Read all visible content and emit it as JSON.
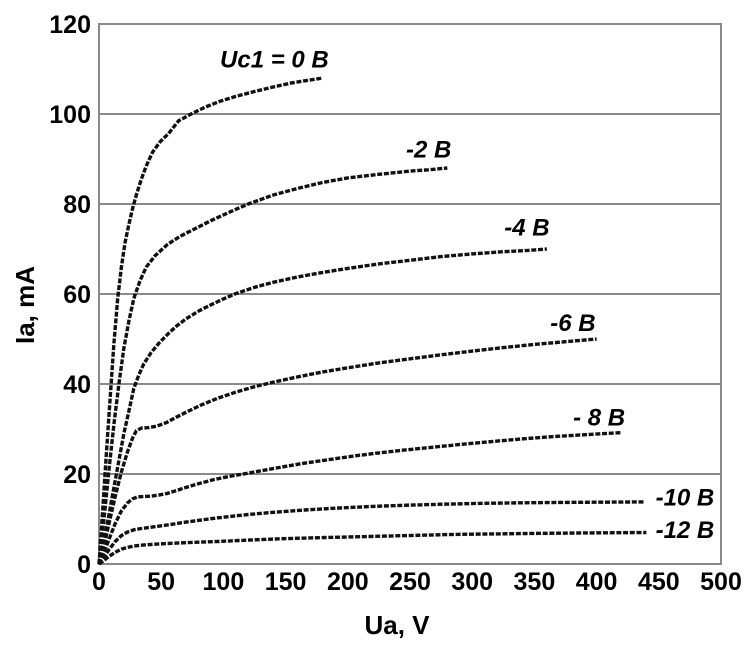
{
  "chart_data": {
    "type": "line",
    "title": "",
    "xlabel": "Ua, V",
    "ylabel": "Ia, mA",
    "xlim": [
      0,
      500
    ],
    "ylim": [
      0,
      120
    ],
    "x_ticks": [
      0,
      50,
      100,
      150,
      200,
      250,
      300,
      350,
      400,
      450,
      500
    ],
    "y_ticks": [
      0,
      20,
      40,
      60,
      80,
      100,
      120
    ],
    "grid": "horizontal-only",
    "legend_position": "inline-labels",
    "colors": {
      "curve": "#111111",
      "grid": "#8a8a8a",
      "border": "#8a8a8a",
      "text": "#000000",
      "background": "#ffffff"
    },
    "series": [
      {
        "name": "Uc1 = 0 B",
        "label": {
          "text": "Uc1 = 0 B",
          "x": 141,
          "y": 112.2
        },
        "points": [
          [
            0,
            0
          ],
          [
            3,
            12
          ],
          [
            6,
            25
          ],
          [
            9,
            37
          ],
          [
            12,
            49
          ],
          [
            15,
            59
          ],
          [
            18,
            66
          ],
          [
            21,
            71.5
          ],
          [
            24,
            75.5
          ],
          [
            27,
            79
          ],
          [
            30,
            82
          ],
          [
            34,
            85.5
          ],
          [
            38,
            88.5
          ],
          [
            43,
            91.5
          ],
          [
            49,
            93.8
          ],
          [
            56,
            95.7
          ],
          [
            64,
            98.5
          ],
          [
            74,
            100
          ],
          [
            85,
            101.5
          ],
          [
            97,
            102.8
          ],
          [
            110,
            103.9
          ],
          [
            125,
            105
          ],
          [
            140,
            106
          ],
          [
            155,
            106.9
          ],
          [
            168,
            107.5
          ],
          [
            180,
            108
          ]
        ]
      },
      {
        "name": "-2 B",
        "label": {
          "text": "-2 B",
          "x": 265,
          "y": 92.2
        },
        "points": [
          [
            0,
            0
          ],
          [
            4,
            10
          ],
          [
            8,
            21
          ],
          [
            12,
            31
          ],
          [
            16,
            40
          ],
          [
            20,
            48
          ],
          [
            24,
            54
          ],
          [
            28,
            59
          ],
          [
            33,
            63
          ],
          [
            38,
            66
          ],
          [
            45,
            68.5
          ],
          [
            55,
            71
          ],
          [
            65,
            72.8
          ],
          [
            75,
            74.2
          ],
          [
            90,
            76.3
          ],
          [
            105,
            78.2
          ],
          [
            120,
            80
          ],
          [
            140,
            82
          ],
          [
            160,
            83.5
          ],
          [
            180,
            84.8
          ],
          [
            200,
            85.8
          ],
          [
            225,
            86.6
          ],
          [
            250,
            87.3
          ],
          [
            265,
            87.6
          ],
          [
            280,
            88
          ]
        ]
      },
      {
        "name": "-4 B",
        "label": {
          "text": "-4 B",
          "x": 344,
          "y": 74.9
        },
        "points": [
          [
            0,
            0
          ],
          [
            4,
            5
          ],
          [
            8,
            11
          ],
          [
            12,
            17
          ],
          [
            16,
            23
          ],
          [
            20,
            29
          ],
          [
            24,
            34
          ],
          [
            28,
            39
          ],
          [
            32,
            42
          ],
          [
            36,
            44.5
          ],
          [
            42,
            47
          ],
          [
            48,
            49
          ],
          [
            55,
            51
          ],
          [
            62,
            52.8
          ],
          [
            70,
            54.5
          ],
          [
            80,
            56.2
          ],
          [
            90,
            57.6
          ],
          [
            100,
            58.9
          ],
          [
            110,
            60.1
          ],
          [
            125,
            61.5
          ],
          [
            140,
            62.6
          ],
          [
            160,
            63.8
          ],
          [
            180,
            64.8
          ],
          [
            200,
            65.7
          ],
          [
            225,
            66.7
          ],
          [
            250,
            67.5
          ],
          [
            275,
            68.3
          ],
          [
            300,
            68.9
          ],
          [
            325,
            69.4
          ],
          [
            345,
            69.7
          ],
          [
            360,
            70
          ]
        ]
      },
      {
        "name": "-6 B",
        "label": {
          "text": "-6 B",
          "x": 381,
          "y": 53.6
        },
        "points": [
          [
            0,
            0
          ],
          [
            4,
            4
          ],
          [
            8,
            9
          ],
          [
            13,
            15
          ],
          [
            18,
            20.5
          ],
          [
            23,
            25
          ],
          [
            27,
            28
          ],
          [
            30,
            29.6
          ],
          [
            34,
            30.2
          ],
          [
            40,
            30.3
          ],
          [
            46,
            30.6
          ],
          [
            54,
            31.4
          ],
          [
            62,
            32.6
          ],
          [
            72,
            34
          ],
          [
            82,
            35.3
          ],
          [
            95,
            36.8
          ],
          [
            110,
            38.2
          ],
          [
            125,
            39.4
          ],
          [
            140,
            40.4
          ],
          [
            160,
            41.6
          ],
          [
            180,
            42.7
          ],
          [
            200,
            43.6
          ],
          [
            225,
            44.7
          ],
          [
            250,
            45.6
          ],
          [
            275,
            46.5
          ],
          [
            300,
            47.3
          ],
          [
            325,
            48.1
          ],
          [
            350,
            48.8
          ],
          [
            375,
            49.4
          ],
          [
            400,
            50
          ]
        ]
      },
      {
        "name": "- 8 B",
        "label": {
          "text": "- 8 B",
          "x": 402,
          "y": 32.7
        },
        "points": [
          [
            0,
            0
          ],
          [
            4,
            2.5
          ],
          [
            8,
            5.5
          ],
          [
            13,
            9
          ],
          [
            18,
            11.8
          ],
          [
            23,
            13.6
          ],
          [
            27,
            14.5
          ],
          [
            31,
            14.9
          ],
          [
            36,
            15
          ],
          [
            42,
            15.1
          ],
          [
            48,
            15.3
          ],
          [
            55,
            15.7
          ],
          [
            63,
            16.4
          ],
          [
            72,
            17.2
          ],
          [
            82,
            18
          ],
          [
            93,
            18.8
          ],
          [
            105,
            19.5
          ],
          [
            118,
            20.1
          ],
          [
            132,
            20.8
          ],
          [
            148,
            21.6
          ],
          [
            165,
            22.4
          ],
          [
            185,
            23.2
          ],
          [
            205,
            24
          ],
          [
            225,
            24.7
          ],
          [
            245,
            25.3
          ],
          [
            270,
            26
          ],
          [
            295,
            26.7
          ],
          [
            320,
            27.3
          ],
          [
            345,
            27.9
          ],
          [
            370,
            28.4
          ],
          [
            395,
            28.8
          ],
          [
            420,
            29.2
          ]
        ]
      },
      {
        "name": "-10 B",
        "label": {
          "text": "-10 B",
          "x": 471,
          "y": 14.9
        },
        "points": [
          [
            0,
            0
          ],
          [
            4,
            1.5
          ],
          [
            8,
            3.2
          ],
          [
            13,
            5
          ],
          [
            18,
            6.3
          ],
          [
            23,
            7.1
          ],
          [
            28,
            7.6
          ],
          [
            34,
            7.9
          ],
          [
            40,
            8.1
          ],
          [
            48,
            8.4
          ],
          [
            58,
            8.8
          ],
          [
            70,
            9.3
          ],
          [
            85,
            9.9
          ],
          [
            100,
            10.4
          ],
          [
            120,
            11
          ],
          [
            140,
            11.5
          ],
          [
            165,
            12
          ],
          [
            190,
            12.4
          ],
          [
            220,
            12.8
          ],
          [
            250,
            13.1
          ],
          [
            280,
            13.3
          ],
          [
            310,
            13.5
          ],
          [
            340,
            13.6
          ],
          [
            375,
            13.7
          ],
          [
            438,
            13.8
          ]
        ]
      },
      {
        "name": "-12 B",
        "label": {
          "text": "-12 B",
          "x": 471,
          "y": 7.6
        },
        "points": [
          [
            0,
            0
          ],
          [
            4,
            0.8
          ],
          [
            8,
            1.7
          ],
          [
            13,
            2.6
          ],
          [
            18,
            3.3
          ],
          [
            23,
            3.7
          ],
          [
            28,
            4
          ],
          [
            35,
            4.2
          ],
          [
            45,
            4.4
          ],
          [
            58,
            4.6
          ],
          [
            75,
            4.8
          ],
          [
            95,
            5
          ],
          [
            120,
            5.3
          ],
          [
            145,
            5.6
          ],
          [
            170,
            5.8
          ],
          [
            200,
            6
          ],
          [
            230,
            6.2
          ],
          [
            260,
            6.4
          ],
          [
            290,
            6.6
          ],
          [
            320,
            6.7
          ],
          [
            350,
            6.8
          ],
          [
            385,
            6.9
          ],
          [
            440,
            7
          ]
        ]
      }
    ]
  }
}
